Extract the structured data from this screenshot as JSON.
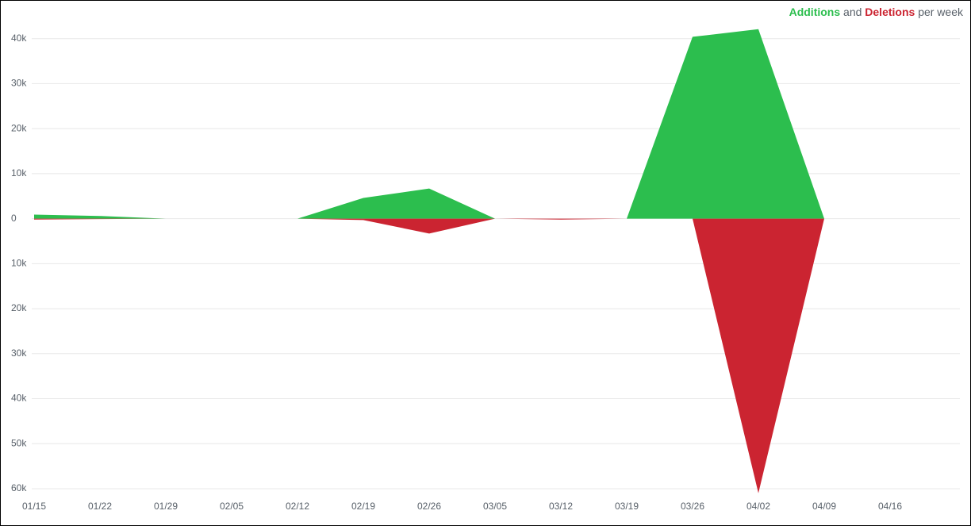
{
  "chart_data": {
    "type": "area",
    "title": {
      "additions": "Additions",
      "and": "and",
      "deletions": "Deletions",
      "suffix": "per week"
    },
    "categories": [
      "01/15",
      "01/22",
      "01/29",
      "02/05",
      "02/12",
      "02/19",
      "02/26",
      "03/05",
      "03/12",
      "03/19",
      "03/26",
      "04/02",
      "04/09",
      "04/16"
    ],
    "series": [
      {
        "name": "Additions",
        "color": "#2cbe4e",
        "values": [
          900,
          600,
          0,
          0,
          0,
          4600,
          6700,
          0,
          0,
          0,
          40400,
          42100,
          0,
          null
        ]
      },
      {
        "name": "Deletions",
        "color": "#cb2431",
        "values": [
          -200,
          -100,
          0,
          0,
          0,
          -300,
          -3300,
          0,
          -200,
          0,
          0,
          -61000,
          0,
          null
        ]
      }
    ],
    "ylim": [
      -60000,
      44000
    ],
    "yticks": [
      {
        "value": 40000,
        "label": "40k"
      },
      {
        "value": 30000,
        "label": "30k"
      },
      {
        "value": 20000,
        "label": "20k"
      },
      {
        "value": 10000,
        "label": "10k"
      },
      0,
      {
        "value": -10000,
        "label": "10k"
      },
      {
        "value": -20000,
        "label": "20k"
      },
      {
        "value": -30000,
        "label": "30k"
      },
      {
        "value": -40000,
        "label": "40k"
      },
      {
        "value": -50000,
        "label": "50k"
      },
      {
        "value": -60000,
        "label": "60k"
      }
    ],
    "grid": true
  }
}
